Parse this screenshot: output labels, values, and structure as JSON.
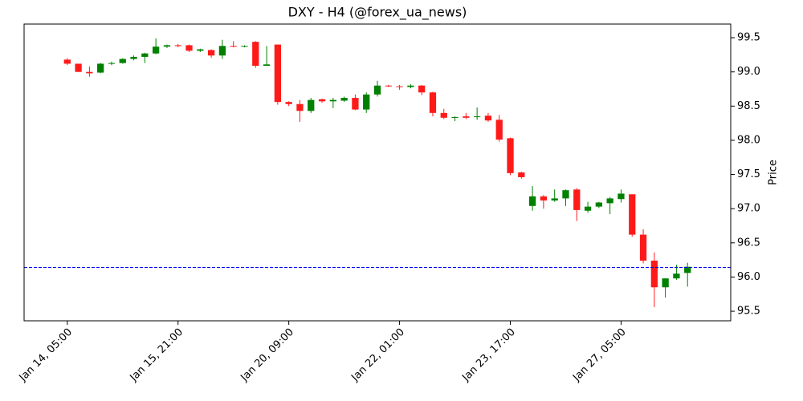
{
  "chart_data": {
    "type": "candlestick",
    "title": "DXY - H4 (@forex_ua_news)",
    "ylabel": "Price",
    "categories": [
      "Jan 14, 05:00",
      null,
      null,
      null,
      null,
      null,
      null,
      null,
      null,
      null,
      "Jan 15, 21:00",
      null,
      null,
      null,
      null,
      null,
      null,
      null,
      null,
      null,
      "Jan 20, 09:00",
      null,
      null,
      null,
      null,
      null,
      null,
      null,
      null,
      null,
      "Jan 22, 01:00",
      null,
      null,
      null,
      null,
      null,
      null,
      null,
      null,
      null,
      "Jan 23, 17:00",
      null,
      null,
      null,
      null,
      null,
      null,
      null,
      null,
      null,
      "Jan 27, 05:00",
      null,
      null,
      null,
      null,
      null,
      null
    ],
    "open": [
      99.18,
      99.12,
      99.0,
      98.99,
      99.12,
      99.13,
      99.19,
      99.22,
      99.27,
      99.37,
      99.39,
      99.39,
      99.31,
      99.32,
      99.24,
      99.38,
      99.37,
      99.44,
      99.09,
      99.4,
      98.56,
      98.53,
      98.43,
      98.6,
      98.57,
      98.58,
      98.62,
      98.45,
      98.67,
      98.8,
      98.79,
      98.78,
      98.8,
      98.7,
      98.4,
      98.33,
      98.35,
      98.34,
      98.36,
      98.3,
      98.03,
      97.53,
      97.04,
      97.18,
      97.12,
      97.15,
      97.28,
      96.97,
      97.03,
      97.08,
      97.14,
      97.21,
      96.62,
      96.24,
      95.85,
      95.98,
      96.06
    ],
    "high": [
      99.2,
      99.12,
      99.08,
      99.13,
      99.15,
      99.2,
      99.24,
      99.28,
      99.49,
      99.4,
      99.41,
      99.4,
      99.34,
      99.33,
      99.47,
      99.45,
      99.39,
      99.45,
      99.38,
      99.4,
      98.57,
      98.59,
      98.62,
      98.61,
      98.62,
      98.64,
      98.67,
      98.7,
      98.87,
      98.81,
      98.81,
      98.82,
      98.81,
      98.71,
      98.46,
      98.35,
      98.4,
      98.48,
      98.4,
      98.37,
      98.04,
      97.54,
      97.33,
      97.2,
      97.28,
      97.28,
      97.3,
      97.1,
      97.1,
      97.17,
      97.28,
      97.21,
      96.7,
      96.36,
      95.98,
      96.18,
      96.21
    ],
    "low": [
      99.1,
      99.0,
      98.93,
      98.98,
      99.1,
      99.12,
      99.17,
      99.13,
      99.26,
      99.35,
      99.36,
      99.29,
      99.29,
      99.21,
      99.19,
      99.36,
      99.36,
      99.06,
      99.09,
      98.52,
      98.5,
      98.27,
      98.4,
      98.55,
      98.47,
      98.56,
      98.44,
      98.4,
      98.64,
      98.78,
      98.74,
      98.76,
      98.66,
      98.35,
      98.31,
      98.28,
      98.31,
      98.3,
      98.27,
      97.98,
      97.49,
      97.44,
      96.97,
      97.0,
      97.1,
      97.04,
      96.82,
      96.94,
      97.01,
      96.92,
      97.09,
      96.59,
      96.2,
      95.56,
      95.7,
      95.96,
      95.86
    ],
    "close": [
      99.12,
      99.0,
      98.98,
      99.12,
      99.13,
      99.19,
      99.22,
      99.27,
      99.37,
      99.39,
      99.38,
      99.31,
      99.33,
      99.24,
      99.38,
      99.37,
      99.38,
      99.09,
      99.11,
      98.56,
      98.53,
      98.43,
      98.59,
      98.57,
      98.59,
      98.62,
      98.45,
      98.67,
      98.8,
      98.79,
      98.78,
      98.8,
      98.7,
      98.4,
      98.33,
      98.34,
      98.33,
      98.35,
      98.29,
      98.01,
      97.52,
      97.46,
      97.18,
      97.12,
      97.15,
      97.27,
      96.98,
      97.03,
      97.09,
      97.15,
      97.22,
      96.62,
      96.24,
      95.85,
      95.98,
      96.05,
      96.15
    ],
    "up_color": "#008000",
    "down_color": "#ff1a1a",
    "reference_line": {
      "value": 96.14,
      "color": "#0000ff"
    },
    "xlim": [
      -3.9,
      59.9
    ],
    "ylim": [
      95.36,
      99.7
    ],
    "yticks": [
      95.5,
      {
        "value": 96,
        "label": "96.0"
      },
      96.5,
      {
        "value": 97,
        "label": "97.0"
      },
      97.5,
      {
        "value": 98,
        "label": "98.0"
      },
      98.5,
      {
        "value": 99,
        "label": "99.0"
      },
      99.5
    ]
  }
}
